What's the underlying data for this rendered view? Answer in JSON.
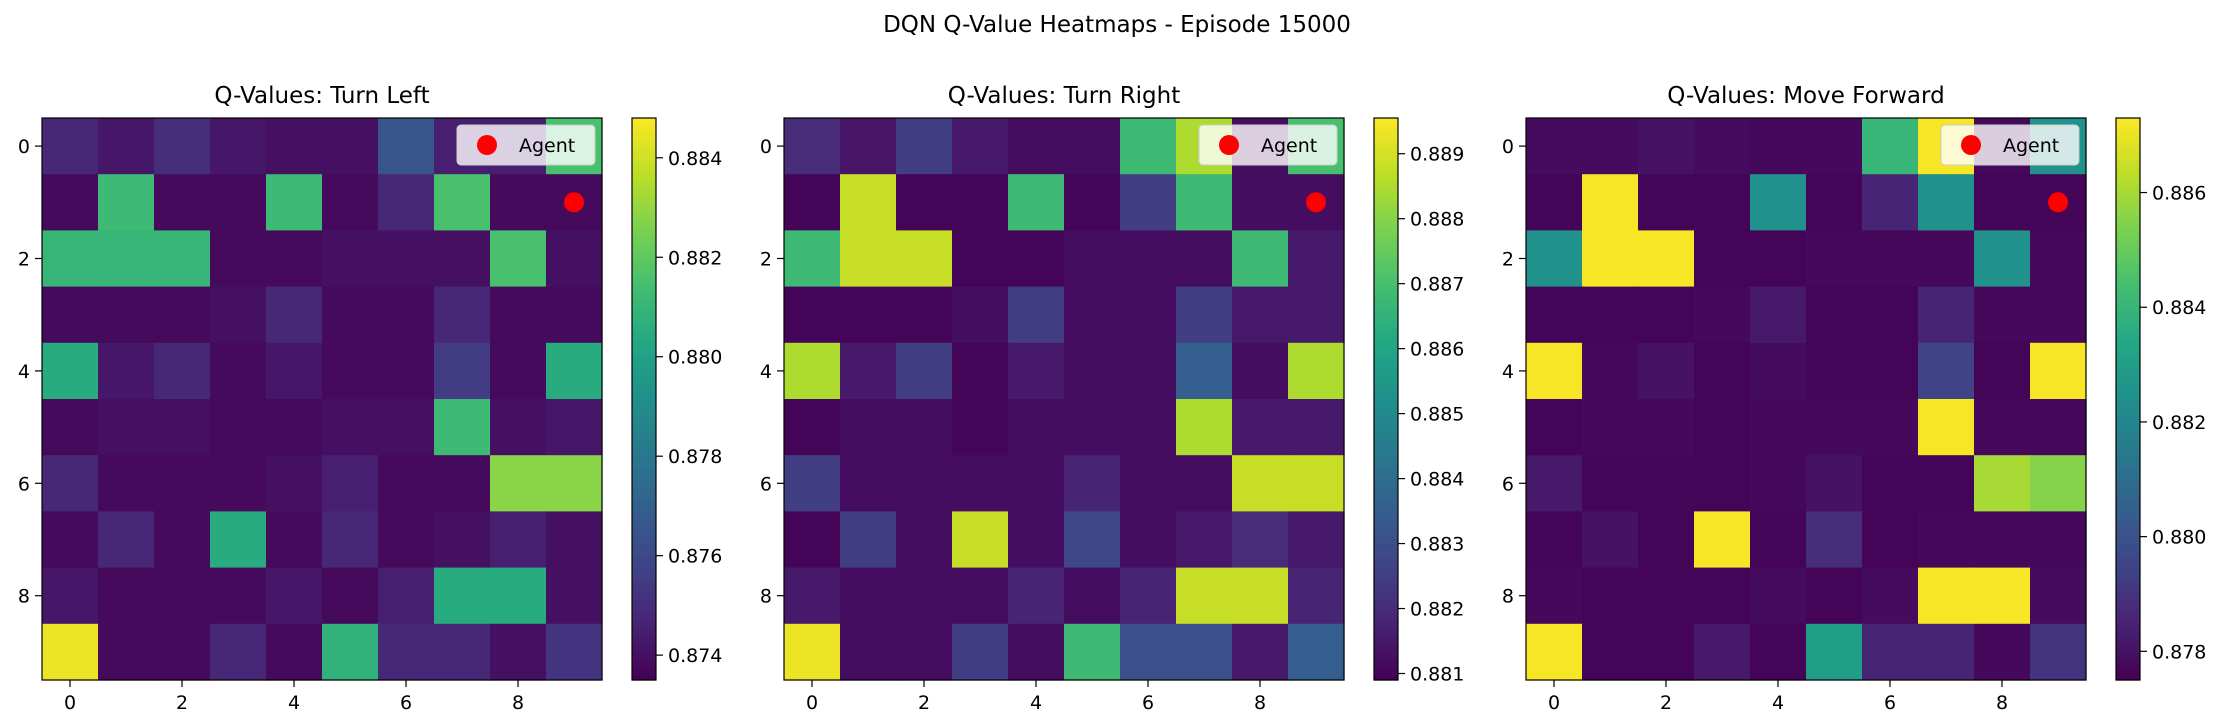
{
  "figure": {
    "suptitle": "DQN Q-Value Heatmaps - Episode 15000"
  },
  "chart_data": [
    {
      "type": "heatmap",
      "title": "Q-Values: Turn Left",
      "xlabel": "",
      "ylabel": "",
      "grid_size": [
        10,
        10
      ],
      "x_ticks": [
        0,
        2,
        4,
        6,
        8
      ],
      "y_ticks": [
        0,
        2,
        4,
        6,
        8
      ],
      "colorscale": "viridis",
      "vmin": 0.8735,
      "vmax": 0.8848,
      "colorbar_ticks": [
        0.874,
        0.876,
        0.878,
        0.88,
        0.882,
        0.884
      ],
      "colorbar_tick_labels": [
        "0.874",
        "0.876",
        "0.878",
        "0.880",
        "0.882",
        "0.884"
      ],
      "legend": {
        "label": "Agent",
        "position": "top-right",
        "marker_color": "#ff0000"
      },
      "agent": {
        "x": 9,
        "y": 1
      },
      "values": [
        [
          0.8748,
          0.8742,
          0.875,
          0.8742,
          0.874,
          0.874,
          0.8765,
          0.8745,
          0.8745,
          0.8815
        ],
        [
          0.8738,
          0.8812,
          0.8738,
          0.8738,
          0.8812,
          0.8738,
          0.8748,
          0.8815,
          0.8738,
          0.8738
        ],
        [
          0.881,
          0.881,
          0.881,
          0.8738,
          0.8738,
          0.874,
          0.874,
          0.874,
          0.8815,
          0.874
        ],
        [
          0.8738,
          0.8738,
          0.8738,
          0.874,
          0.8748,
          0.8738,
          0.8738,
          0.8748,
          0.8738,
          0.8738
        ],
        [
          0.8805,
          0.8742,
          0.8748,
          0.8738,
          0.8742,
          0.8738,
          0.8738,
          0.8755,
          0.8738,
          0.8805
        ],
        [
          0.8738,
          0.874,
          0.874,
          0.8738,
          0.8738,
          0.874,
          0.874,
          0.8812,
          0.874,
          0.8742
        ],
        [
          0.8748,
          0.8738,
          0.8738,
          0.8738,
          0.874,
          0.8745,
          0.8738,
          0.8738,
          0.8828,
          0.8828
        ],
        [
          0.8738,
          0.8748,
          0.8738,
          0.8805,
          0.8738,
          0.8748,
          0.8738,
          0.874,
          0.8745,
          0.874
        ],
        [
          0.8742,
          0.8738,
          0.8738,
          0.8738,
          0.8742,
          0.8738,
          0.8745,
          0.8805,
          0.8805,
          0.874
        ],
        [
          0.8845,
          0.8738,
          0.8738,
          0.8748,
          0.8738,
          0.8808,
          0.8748,
          0.8748,
          0.874,
          0.8752
        ]
      ]
    },
    {
      "type": "heatmap",
      "title": "Q-Values: Turn Right",
      "xlabel": "",
      "ylabel": "",
      "grid_size": [
        10,
        10
      ],
      "x_ticks": [
        0,
        2,
        4,
        6,
        8
      ],
      "y_ticks": [
        0,
        2,
        4,
        6,
        8
      ],
      "colorscale": "viridis",
      "vmin": 0.8809,
      "vmax": 0.88955,
      "colorbar_ticks": [
        0.881,
        0.882,
        0.883,
        0.884,
        0.885,
        0.886,
        0.887,
        0.888,
        0.889
      ],
      "colorbar_tick_labels": [
        "0.881",
        "0.882",
        "0.883",
        "0.884",
        "0.885",
        "0.886",
        "0.887",
        "0.888",
        "0.889"
      ],
      "legend": {
        "label": "Agent",
        "position": "top-right",
        "marker_color": "#ff0000"
      },
      "agent": {
        "x": 9,
        "y": 1
      },
      "values": [
        [
          0.882,
          0.8814,
          0.8825,
          0.8815,
          0.8812,
          0.8812,
          0.8868,
          0.8885,
          0.8812,
          0.887
        ],
        [
          0.881,
          0.8888,
          0.881,
          0.881,
          0.8868,
          0.881,
          0.8825,
          0.8868,
          0.8812,
          0.8812
        ],
        [
          0.8868,
          0.8888,
          0.8888,
          0.881,
          0.881,
          0.8812,
          0.8812,
          0.8812,
          0.8868,
          0.8815
        ],
        [
          0.881,
          0.881,
          0.881,
          0.8812,
          0.8825,
          0.8812,
          0.8812,
          0.8825,
          0.8815,
          0.8815
        ],
        [
          0.8885,
          0.8815,
          0.8825,
          0.881,
          0.8815,
          0.8812,
          0.8812,
          0.8835,
          0.8812,
          0.8885
        ],
        [
          0.881,
          0.8812,
          0.8812,
          0.881,
          0.8812,
          0.8812,
          0.8812,
          0.8885,
          0.8815,
          0.8815
        ],
        [
          0.8825,
          0.8812,
          0.8812,
          0.8812,
          0.8812,
          0.8818,
          0.8812,
          0.8812,
          0.8888,
          0.8888
        ],
        [
          0.881,
          0.8825,
          0.8812,
          0.8888,
          0.8812,
          0.8828,
          0.8812,
          0.8815,
          0.882,
          0.8815
        ],
        [
          0.8815,
          0.8812,
          0.8812,
          0.8812,
          0.8818,
          0.8812,
          0.8818,
          0.8888,
          0.8888,
          0.8818
        ],
        [
          0.8893,
          0.8812,
          0.8812,
          0.8825,
          0.8812,
          0.8868,
          0.883,
          0.883,
          0.8815,
          0.8835
        ]
      ]
    },
    {
      "type": "heatmap",
      "title": "Q-Values: Move Forward",
      "xlabel": "",
      "ylabel": "",
      "grid_size": [
        10,
        10
      ],
      "x_ticks": [
        0,
        2,
        4,
        6,
        8
      ],
      "y_ticks": [
        0,
        2,
        4,
        6,
        8
      ],
      "colorscale": "viridis",
      "vmin": 0.8775,
      "vmax": 0.8873,
      "colorbar_ticks": [
        0.878,
        0.88,
        0.882,
        0.884,
        0.886
      ],
      "colorbar_tick_labels": [
        "0.878",
        "0.880",
        "0.882",
        "0.884",
        "0.886"
      ],
      "legend": {
        "label": "Agent",
        "position": "top-right",
        "marker_color": "#ff0000"
      },
      "agent": {
        "x": 9,
        "y": 1
      },
      "values": [
        [
          0.8778,
          0.8778,
          0.878,
          0.8778,
          0.8777,
          0.8777,
          0.884,
          0.8872,
          0.8777,
          0.8825
        ],
        [
          0.8776,
          0.8872,
          0.8776,
          0.8776,
          0.8825,
          0.8776,
          0.8785,
          0.8825,
          0.8776,
          0.8776
        ],
        [
          0.8825,
          0.8872,
          0.8872,
          0.8776,
          0.8776,
          0.8777,
          0.8777,
          0.8777,
          0.8825,
          0.8777
        ],
        [
          0.8776,
          0.8776,
          0.8776,
          0.8777,
          0.8782,
          0.8776,
          0.8776,
          0.8785,
          0.8777,
          0.8777
        ],
        [
          0.8872,
          0.8777,
          0.878,
          0.8776,
          0.8778,
          0.8776,
          0.8776,
          0.8795,
          0.8776,
          0.8872
        ],
        [
          0.8776,
          0.8777,
          0.8777,
          0.8776,
          0.8777,
          0.8777,
          0.8777,
          0.8872,
          0.8777,
          0.8777
        ],
        [
          0.8782,
          0.8776,
          0.8776,
          0.8776,
          0.8777,
          0.878,
          0.8776,
          0.8776,
          0.886,
          0.8855
        ],
        [
          0.8776,
          0.878,
          0.8776,
          0.8872,
          0.8776,
          0.8788,
          0.8776,
          0.8777,
          0.8777,
          0.8777
        ],
        [
          0.8777,
          0.8776,
          0.8776,
          0.8776,
          0.8778,
          0.8776,
          0.8778,
          0.8872,
          0.8872,
          0.8778
        ],
        [
          0.8872,
          0.8776,
          0.8776,
          0.8782,
          0.8776,
          0.883,
          0.8785,
          0.8785,
          0.8777,
          0.879
        ]
      ]
    }
  ]
}
